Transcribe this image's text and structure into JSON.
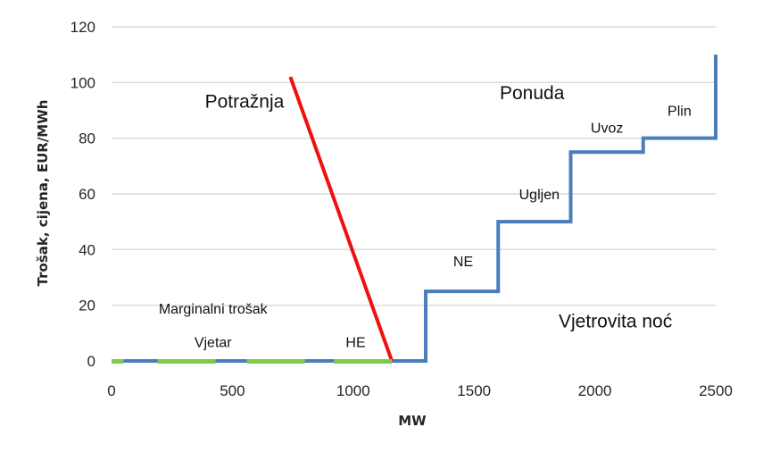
{
  "chart_data": {
    "type": "line",
    "title": "",
    "xlabel": "MW",
    "ylabel": "Trošak, cijena, EUR/MWh",
    "xlim": [
      0,
      2500
    ],
    "ylim": [
      0,
      120
    ],
    "xticks": [
      0,
      500,
      1000,
      1500,
      2000,
      2500
    ],
    "yticks": [
      0,
      20,
      40,
      60,
      80,
      100,
      120
    ],
    "grid": "horizontal",
    "legend": "none",
    "colors": {
      "supply": "#4a7ebb",
      "demand": "#ee1111",
      "marginal": "#7ccc4a",
      "grid": "#d9d9d9"
    },
    "series": [
      {
        "name": "Ponuda",
        "points": [
          [
            0,
            0
          ],
          [
            1300,
            0
          ],
          [
            1300,
            25
          ],
          [
            1600,
            25
          ],
          [
            1600,
            50
          ],
          [
            1900,
            50
          ],
          [
            1900,
            75
          ],
          [
            2200,
            75
          ],
          [
            2200,
            80
          ],
          [
            2500,
            80
          ],
          [
            2500,
            110
          ]
        ]
      },
      {
        "name": "Potražnja",
        "points": [
          [
            740,
            102
          ],
          [
            1160,
            0
          ]
        ]
      },
      {
        "name": "Marginalni trošak",
        "segments": [
          [
            0,
            50
          ],
          [
            190,
            430
          ],
          [
            560,
            800
          ],
          [
            920,
            1160
          ]
        ],
        "y": 0
      }
    ],
    "annotations": [
      {
        "id": "potraznja",
        "text": "Potražnja",
        "x": 550,
        "y": 91,
        "size": "large"
      },
      {
        "id": "ponuda",
        "text": "Ponuda",
        "x": 1740,
        "y": 94,
        "size": "large"
      },
      {
        "id": "vjetrovita",
        "text": "Vjetrovita noć",
        "x": 2085,
        "y": 12,
        "size": "large"
      },
      {
        "id": "marginalni",
        "text": "Marginalni trošak",
        "x": 420,
        "y": 17,
        "size": "small"
      },
      {
        "id": "vjetar",
        "text": "Vjetar",
        "x": 420,
        "y": 5,
        "size": "small"
      },
      {
        "id": "he",
        "text": "HE",
        "x": 1010,
        "y": 5,
        "size": "small"
      },
      {
        "id": "ne",
        "text": "NE",
        "x": 1455,
        "y": 34,
        "size": "small"
      },
      {
        "id": "ugljen",
        "text": "Ugljen",
        "x": 1770,
        "y": 58,
        "size": "small"
      },
      {
        "id": "uvoz",
        "text": "Uvoz",
        "x": 2050,
        "y": 82,
        "size": "small"
      },
      {
        "id": "plin",
        "text": "Plin",
        "x": 2350,
        "y": 88,
        "size": "small"
      }
    ]
  }
}
